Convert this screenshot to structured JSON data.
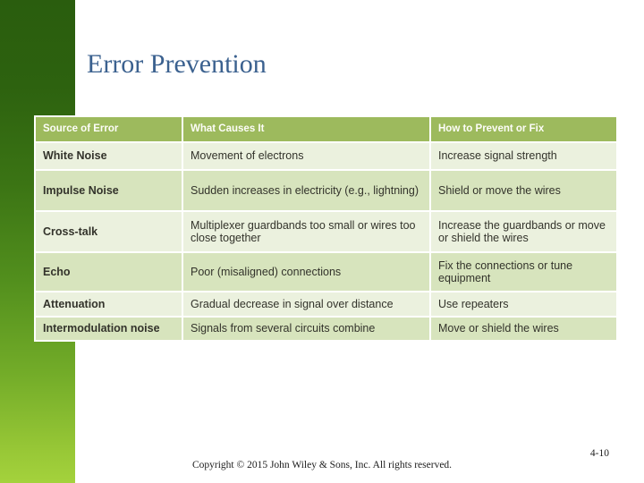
{
  "slide": {
    "title": "Error Prevention",
    "footer": {
      "copyright": "Copyright © 2015 John Wiley & Sons, Inc. All rights reserved.",
      "page_number": "4-10"
    }
  },
  "table": {
    "headers": [
      "Source of Error",
      "What Causes It",
      "How to Prevent or Fix"
    ],
    "rows": [
      {
        "source": "White Noise",
        "cause": "Movement of electrons",
        "fix": "Increase signal strength"
      },
      {
        "source": "Impulse Noise",
        "cause": "Sudden increases in electricity (e.g., lightning)",
        "fix": "Shield or move the wires"
      },
      {
        "source": "Cross-talk",
        "cause": "Multiplexer guardbands too small or wires too close together",
        "fix": "Increase the guardbands or move or shield the wires"
      },
      {
        "source": "Echo",
        "cause": "Poor (misaligned) connections",
        "fix": "Fix the connections or tune equipment"
      },
      {
        "source": "Attenuation",
        "cause": "Gradual decrease in signal over distance",
        "fix": "Use repeaters"
      },
      {
        "source": "Intermodulation noise",
        "cause": "Signals from several circuits combine",
        "fix": "Move or shield the wires"
      }
    ]
  },
  "colors": {
    "header_green": "#9dba5d",
    "band_light": "#ebf1de",
    "band_dark": "#d7e4bd",
    "sidebar_top": "#2a5d0e",
    "sidebar_bottom": "#a4d23c",
    "title_blue": "#3b618f"
  }
}
